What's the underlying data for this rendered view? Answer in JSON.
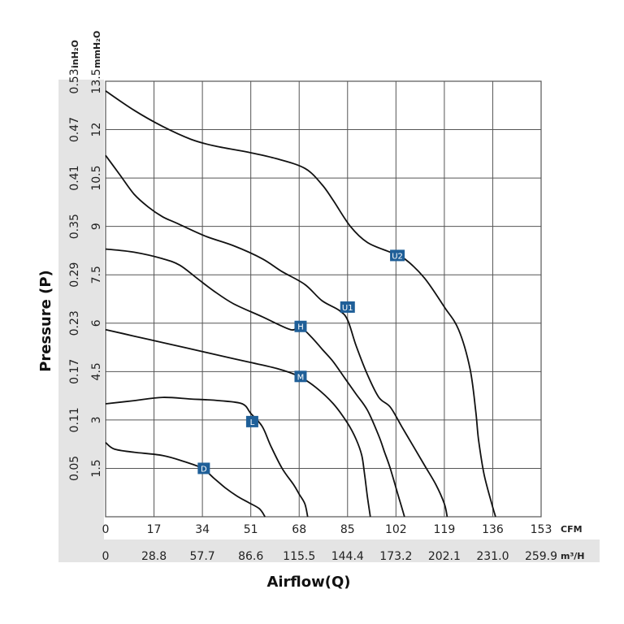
{
  "chart_data": {
    "type": "line",
    "xlabel": "Airflow(Q)",
    "ylabel": "Pressure (P)",
    "x_unit_primary": "CFM",
    "x_unit_secondary": "m³/H",
    "y_unit_primary": "mmH₂O",
    "y_unit_secondary": "inH₂O",
    "xlim": [
      0,
      153
    ],
    "ylim": [
      0,
      13.5
    ],
    "x_ticks_cfm": [
      "0",
      "17",
      "34",
      "51",
      "68",
      "85",
      "102",
      "119",
      "136",
      "153"
    ],
    "x_ticks_m3h": [
      "0",
      "28.8",
      "57.7",
      "86.6",
      "115.5",
      "144.4",
      "173.2",
      "202.1",
      "231.0",
      "259.9"
    ],
    "y_ticks_mmh2o": [
      "1.5",
      "3",
      "4.5",
      "6",
      "7.5",
      "9",
      "10.5",
      "12",
      "13.5"
    ],
    "y_ticks_inh2o": [
      "0.05",
      "0.11",
      "0.17",
      "0.23",
      "0.29",
      "0.35",
      "0.41",
      "0.47",
      "0.53"
    ],
    "y_tick_values": [
      1.5,
      3,
      4.5,
      6,
      7.5,
      9,
      10.5,
      12,
      13.5
    ],
    "grid": true,
    "series": [
      {
        "name": "U2",
        "label_at": [
          102.5,
          8.1
        ],
        "points": [
          [
            0,
            13.2
          ],
          [
            10,
            12.6
          ],
          [
            20,
            12.1
          ],
          [
            30,
            11.7
          ],
          [
            38,
            11.5
          ],
          [
            50,
            11.3
          ],
          [
            60,
            11.1
          ],
          [
            70,
            10.8
          ],
          [
            76,
            10.3
          ],
          [
            80,
            9.8
          ],
          [
            86,
            9.0
          ],
          [
            92,
            8.5
          ],
          [
            100,
            8.2
          ],
          [
            105,
            8.0
          ],
          [
            112,
            7.4
          ],
          [
            119,
            6.5
          ],
          [
            124,
            5.8
          ],
          [
            128,
            4.6
          ],
          [
            130,
            3.3
          ],
          [
            131,
            2.4
          ],
          [
            133,
            1.3
          ],
          [
            136,
            0.3
          ],
          [
            137,
            0
          ]
        ]
      },
      {
        "name": "U1",
        "label_at": [
          85,
          6.5
        ],
        "points": [
          [
            0,
            11.2
          ],
          [
            5,
            10.6
          ],
          [
            10,
            10.0
          ],
          [
            15,
            9.6
          ],
          [
            20,
            9.3
          ],
          [
            25,
            9.1
          ],
          [
            35,
            8.7
          ],
          [
            45,
            8.4
          ],
          [
            55,
            8.0
          ],
          [
            62,
            7.6
          ],
          [
            70,
            7.2
          ],
          [
            76,
            6.7
          ],
          [
            82,
            6.4
          ],
          [
            85,
            6.1
          ],
          [
            88,
            5.3
          ],
          [
            92,
            4.4
          ],
          [
            96,
            3.7
          ],
          [
            100,
            3.4
          ],
          [
            104,
            2.8
          ],
          [
            108,
            2.2
          ],
          [
            112,
            1.6
          ],
          [
            116,
            1.0
          ],
          [
            119,
            0.4
          ],
          [
            120,
            0
          ]
        ]
      },
      {
        "name": "H",
        "label_at": [
          68.5,
          5.9
        ],
        "points": [
          [
            0,
            8.3
          ],
          [
            10,
            8.2
          ],
          [
            20,
            8.0
          ],
          [
            26,
            7.8
          ],
          [
            32,
            7.4
          ],
          [
            38,
            7.0
          ],
          [
            45,
            6.6
          ],
          [
            55,
            6.2
          ],
          [
            65,
            5.8
          ],
          [
            68,
            5.9
          ],
          [
            72,
            5.6
          ],
          [
            76,
            5.2
          ],
          [
            80,
            4.8
          ],
          [
            84,
            4.3
          ],
          [
            88,
            3.8
          ],
          [
            92,
            3.3
          ],
          [
            96,
            2.5
          ],
          [
            98,
            2.0
          ],
          [
            100,
            1.5
          ],
          [
            103,
            0.6
          ],
          [
            105,
            0
          ]
        ]
      },
      {
        "name": "M",
        "label_at": [
          68.5,
          4.35
        ],
        "points": [
          [
            0,
            5.8
          ],
          [
            10,
            5.6
          ],
          [
            20,
            5.4
          ],
          [
            30,
            5.2
          ],
          [
            40,
            5.0
          ],
          [
            50,
            4.8
          ],
          [
            60,
            4.6
          ],
          [
            68,
            4.35
          ],
          [
            74,
            4.0
          ],
          [
            80,
            3.5
          ],
          [
            85,
            2.9
          ],
          [
            88,
            2.4
          ],
          [
            90,
            1.9
          ],
          [
            91,
            1.3
          ],
          [
            92,
            0.6
          ],
          [
            93,
            0
          ]
        ]
      },
      {
        "name": "L",
        "label_at": [
          51.5,
          2.95
        ],
        "points": [
          [
            0,
            3.5
          ],
          [
            10,
            3.6
          ],
          [
            20,
            3.7
          ],
          [
            30,
            3.65
          ],
          [
            40,
            3.6
          ],
          [
            48,
            3.5
          ],
          [
            51,
            3.2
          ],
          [
            55,
            2.8
          ],
          [
            58,
            2.2
          ],
          [
            62,
            1.5
          ],
          [
            66,
            1.0
          ],
          [
            68,
            0.7
          ],
          [
            70,
            0.4
          ],
          [
            71,
            0
          ]
        ]
      },
      {
        "name": "D",
        "label_at": [
          34.5,
          1.5
        ],
        "points": [
          [
            0,
            2.3
          ],
          [
            3,
            2.1
          ],
          [
            10,
            2.0
          ],
          [
            20,
            1.9
          ],
          [
            28,
            1.7
          ],
          [
            34,
            1.5
          ],
          [
            38,
            1.2
          ],
          [
            42,
            0.9
          ],
          [
            46,
            0.65
          ],
          [
            50,
            0.45
          ],
          [
            54,
            0.25
          ],
          [
            56,
            0
          ]
        ]
      }
    ]
  },
  "style": {
    "curve_color": "#111111",
    "marker_color": "#1f5f98",
    "grid_color": "#555555",
    "band_color": "#e4e4e4"
  }
}
